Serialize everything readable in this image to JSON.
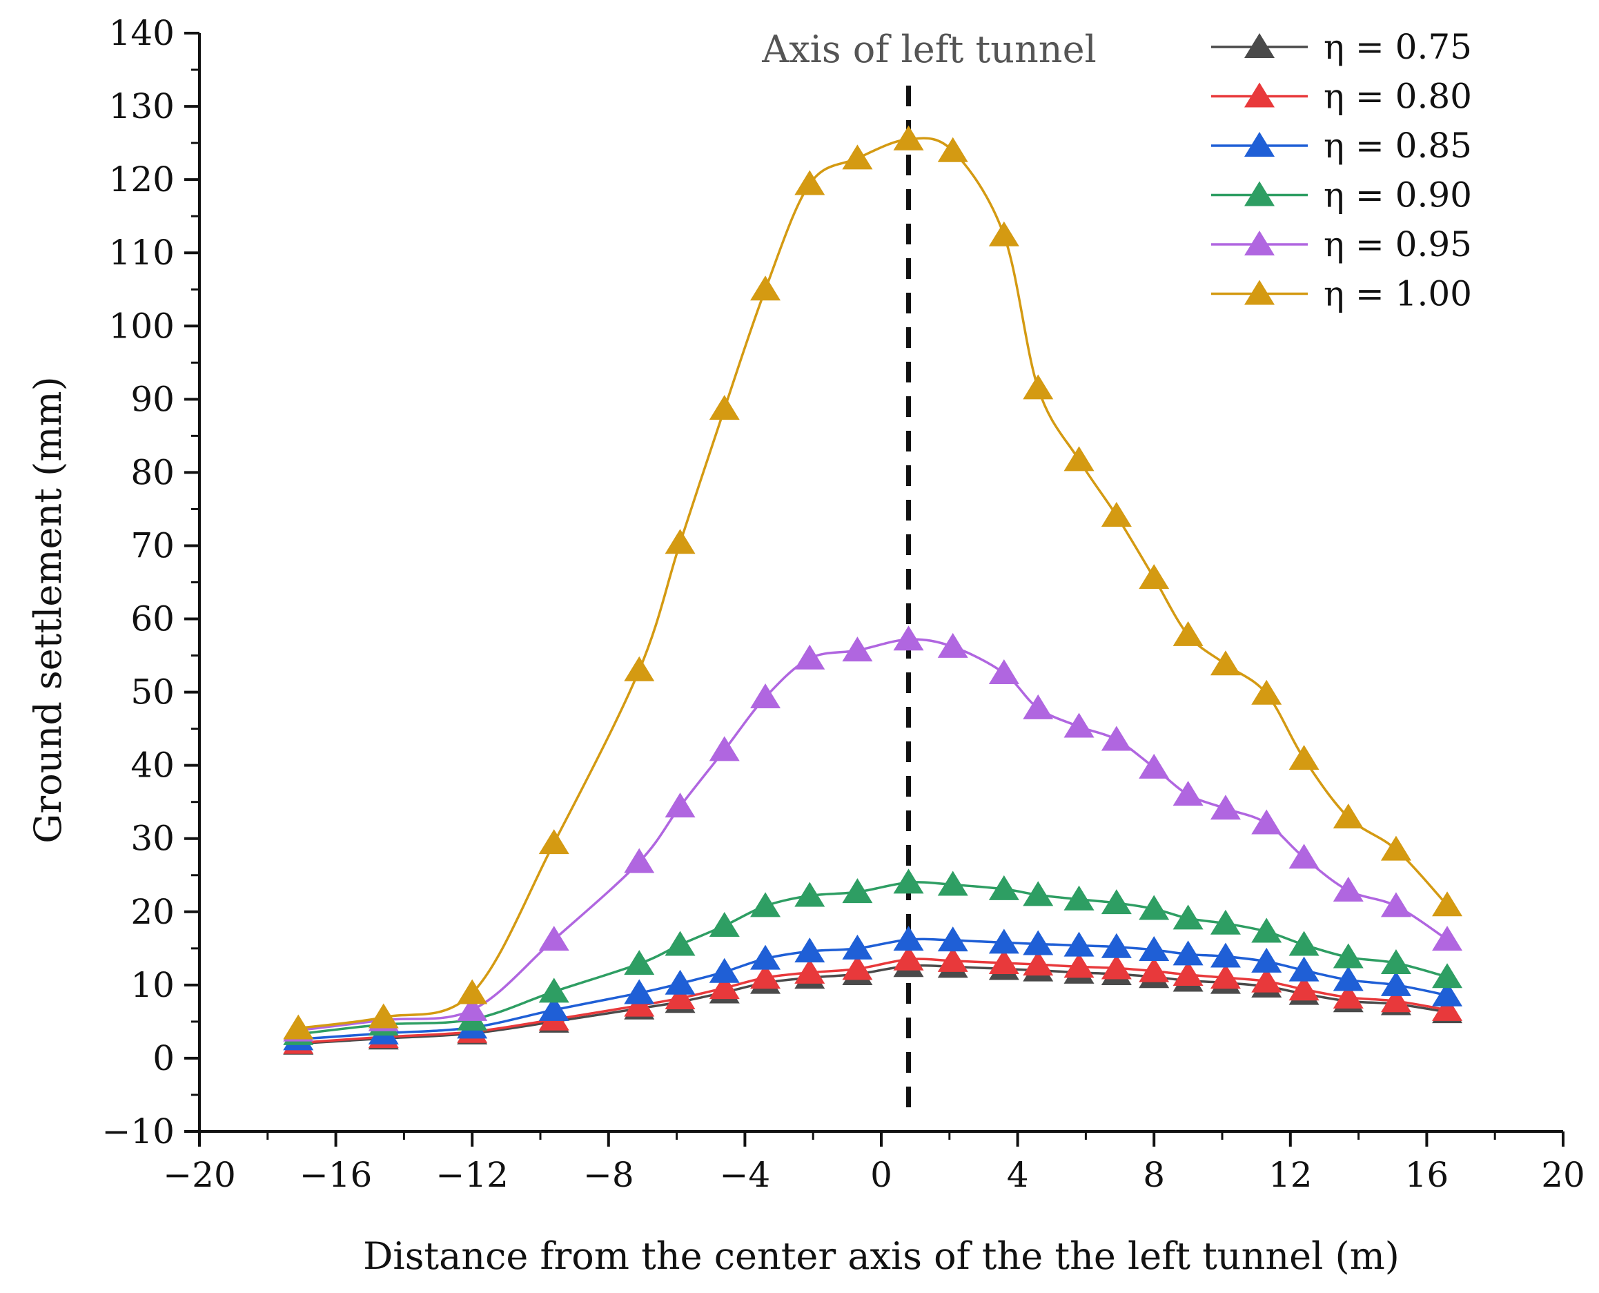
{
  "chart_data": {
    "type": "line",
    "xlabel": "Distance from the center axis of the the left tunnel (m)",
    "ylabel": "Ground settlement (mm)",
    "xlim": [
      -20,
      20
    ],
    "ylim": [
      -10,
      140
    ],
    "xticks": [
      -20,
      -16,
      -12,
      -8,
      -4,
      0,
      4,
      8,
      12,
      16,
      20
    ],
    "xtick_labels": [
      "−20",
      "−16",
      "−12",
      "−8",
      "−4",
      "0",
      "4",
      "8",
      "12",
      "16",
      "20"
    ],
    "yticks": [
      -10,
      0,
      10,
      20,
      30,
      40,
      50,
      60,
      70,
      80,
      90,
      100,
      110,
      120,
      130,
      140
    ],
    "ytick_labels": [
      "−10",
      "0",
      "10",
      "20",
      "30",
      "40",
      "50",
      "60",
      "70",
      "80",
      "90",
      "100",
      "110",
      "120",
      "130",
      "140"
    ],
    "annotation": {
      "text": "Axis of left tunnel",
      "x": 0.8
    },
    "legend_position": "top-right",
    "marker": "triangle",
    "x": [
      -17.1,
      -14.6,
      -12.0,
      -9.6,
      -7.1,
      -5.9,
      -4.6,
      -3.4,
      -2.1,
      -0.7,
      0.8,
      2.1,
      3.6,
      4.6,
      5.8,
      6.9,
      8.0,
      9.0,
      10.1,
      11.3,
      12.4,
      13.7,
      15.1,
      16.6
    ],
    "series": [
      {
        "name": "η = 0.75",
        "color": "#4a4a4a",
        "values": [
          2.0,
          2.7,
          3.4,
          5.0,
          6.8,
          7.7,
          9.0,
          10.3,
          11.0,
          11.5,
          12.6,
          12.5,
          12.2,
          12.0,
          11.7,
          11.5,
          11.1,
          10.6,
          10.3,
          9.8,
          8.8,
          7.8,
          7.4,
          6.3
        ]
      },
      {
        "name": "η = 0.80",
        "color": "#e8393b",
        "values": [
          2.1,
          2.9,
          3.6,
          5.3,
          7.2,
          8.2,
          9.6,
          11.0,
          11.7,
          12.2,
          13.5,
          13.3,
          13.0,
          12.8,
          12.5,
          12.3,
          11.9,
          11.4,
          11.0,
          10.5,
          9.4,
          8.3,
          7.8,
          6.6
        ]
      },
      {
        "name": "η = 0.85",
        "color": "#1f5fd6",
        "values": [
          2.6,
          3.4,
          4.2,
          6.6,
          8.9,
          10.2,
          11.8,
          13.6,
          14.6,
          15.0,
          16.2,
          16.1,
          15.8,
          15.6,
          15.4,
          15.2,
          14.8,
          14.2,
          13.9,
          13.2,
          12.0,
          10.7,
          10.0,
          8.6
        ]
      },
      {
        "name": "η = 0.90",
        "color": "#2e9e63",
        "values": [
          3.3,
          4.6,
          5.3,
          9.1,
          12.9,
          15.5,
          18.1,
          20.8,
          22.2,
          22.7,
          24.0,
          23.7,
          23.1,
          22.3,
          21.7,
          21.2,
          20.4,
          19.1,
          18.4,
          17.3,
          15.5,
          13.8,
          13.0,
          11.1
        ]
      },
      {
        "name": "η = 0.95",
        "color": "#b066e0",
        "values": [
          3.8,
          5.2,
          6.6,
          16.2,
          26.8,
          34.4,
          42.1,
          49.3,
          54.6,
          55.7,
          57.2,
          56.2,
          52.6,
          47.8,
          45.3,
          43.5,
          39.7,
          36.0,
          34.1,
          32.1,
          27.4,
          22.9,
          20.8,
          16.2
        ]
      },
      {
        "name": "η = 1.00",
        "color": "#d49a12",
        "values": [
          4.1,
          5.6,
          8.9,
          29.4,
          53.0,
          70.4,
          88.7,
          105.0,
          119.4,
          122.9,
          125.5,
          123.9,
          112.4,
          91.5,
          81.7,
          74.1,
          65.6,
          57.8,
          53.8,
          49.8,
          40.9,
          32.9,
          28.5,
          20.9
        ]
      }
    ]
  }
}
